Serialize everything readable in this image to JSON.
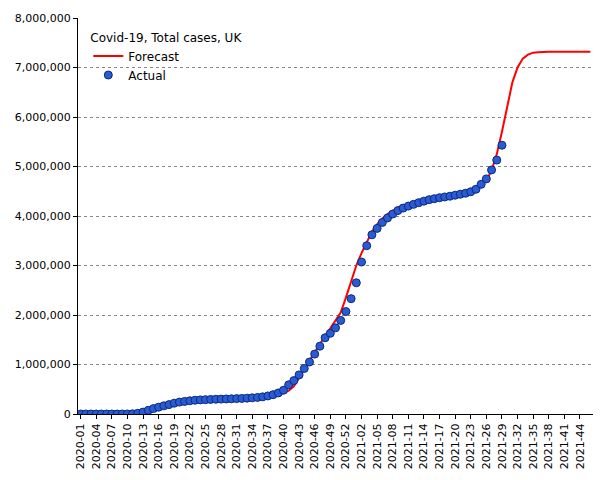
{
  "chart_data": {
    "type": "line",
    "title": "Covid-19, Total cases, UK",
    "categories": [
      "2020-01",
      null,
      null,
      "2020-04",
      null,
      null,
      "2020-07",
      null,
      null,
      "2020-10",
      null,
      null,
      "2020-13",
      null,
      null,
      "2020-16",
      null,
      null,
      "2020-19",
      null,
      null,
      "2020-22",
      null,
      null,
      "2020-25",
      null,
      null,
      "2020-28",
      null,
      null,
      "2020-31",
      null,
      null,
      "2020-34",
      null,
      null,
      "2020-37",
      null,
      null,
      "2020-40",
      null,
      null,
      "2020-43",
      null,
      null,
      "2020-46",
      null,
      null,
      "2020-49",
      null,
      null,
      "2020-52",
      null,
      null,
      "2021-02",
      null,
      null,
      "2021-05",
      null,
      null,
      "2021-08",
      null,
      null,
      "2021-11",
      null,
      null,
      "2021-14",
      null,
      null,
      "2021-17",
      null,
      null,
      "2021-20",
      null,
      null,
      "2021-23",
      null,
      null,
      "2021-26",
      null,
      null,
      "2021-29",
      null,
      null,
      "2021-32",
      null,
      null,
      "2021-35",
      null,
      null,
      "2021-38",
      null,
      null,
      "2021-41",
      null,
      null,
      "2021-44",
      null,
      null
    ],
    "series": [
      {
        "name": "Forecast",
        "color": "#ff0000",
        "type": "line",
        "line_style": "solid",
        "values": [
          0,
          0,
          0,
          0,
          0,
          0,
          0,
          0,
          0,
          300,
          3000,
          11000,
          30000,
          60000,
          92000,
          122000,
          150000,
          176000,
          200000,
          222000,
          240000,
          255000,
          267000,
          276000,
          283000,
          289000,
          294000,
          298000,
          302000,
          305000,
          309000,
          313000,
          318000,
          324000,
          331000,
          340000,
          352000,
          370000,
          395000,
          425000,
          470000,
          560000,
          720000,
          900000,
          1080000,
          1250000,
          1420000,
          1580000,
          1730000,
          1880000,
          2050000,
          2350000,
          2700000,
          3000000,
          3250000,
          3480000,
          3680000,
          3830000,
          3950000,
          4040000,
          4110000,
          4170000,
          4210000,
          4245000,
          4275000,
          4300000,
          4325000,
          4345000,
          4360000,
          4375000,
          4390000,
          4400000,
          4410000,
          4420000,
          4435000,
          4460000,
          4510000,
          4600000,
          4720000,
          4920000,
          5250000,
          5700000,
          6200000,
          6700000,
          7000000,
          7180000,
          7260000,
          7300000,
          7310000,
          7320000,
          7320000,
          7320000,
          7320000,
          7320000,
          7320000,
          7320000,
          7320000,
          7320000,
          7320000
        ]
      },
      {
        "name": "Actual",
        "color": "#2a5bd7",
        "type": "scatter",
        "marker": "circle",
        "values": [
          0,
          0,
          0,
          0,
          0,
          0,
          0,
          0,
          50,
          460,
          3980,
          14500,
          38000,
          74000,
          109000,
          138000,
          165000,
          190000,
          219000,
          240000,
          254000,
          267000,
          278000,
          285000,
          290000,
          294000,
          298000,
          301000,
          304000,
          307000,
          311000,
          315000,
          320000,
          327000,
          335000,
          346000,
          365000,
          390000,
          425000,
          480000,
          590000,
          675000,
          790000,
          920000,
          1050000,
          1210000,
          1370000,
          1540000,
          1630000,
          1740000,
          1890000,
          2070000,
          2330000,
          2650000,
          3070000,
          3400000,
          3620000,
          3750000,
          3870000,
          3960000,
          4040000,
          4110000,
          4160000,
          4200000,
          4235000,
          4270000,
          4300000,
          4330000,
          4350000,
          4370000,
          4385000,
          4400000,
          4420000,
          4440000,
          4460000,
          4490000,
          4540000,
          4640000,
          4750000,
          4930000,
          5130000,
          5430000,
          null,
          null,
          null,
          null,
          null,
          null,
          null,
          null,
          null,
          null,
          null,
          null,
          null,
          null,
          null,
          null,
          null
        ]
      }
    ],
    "ylim": [
      0,
      8000000
    ],
    "yticks": [
      0,
      {
        "value": 1000000,
        "label": "1,000,000"
      },
      {
        "value": 2000000,
        "label": "2,000,000"
      },
      {
        "value": 3000000,
        "label": "3,000,000"
      },
      {
        "value": 4000000,
        "label": "4,000,000"
      },
      {
        "value": 5000000,
        "label": "5,000,000"
      },
      {
        "value": 6000000,
        "label": "6,000,000"
      },
      {
        "value": 7000000,
        "label": "7,000,000"
      },
      {
        "value": 8000000,
        "label": "8,000,000"
      }
    ],
    "grid": true,
    "legend": "upper left"
  }
}
